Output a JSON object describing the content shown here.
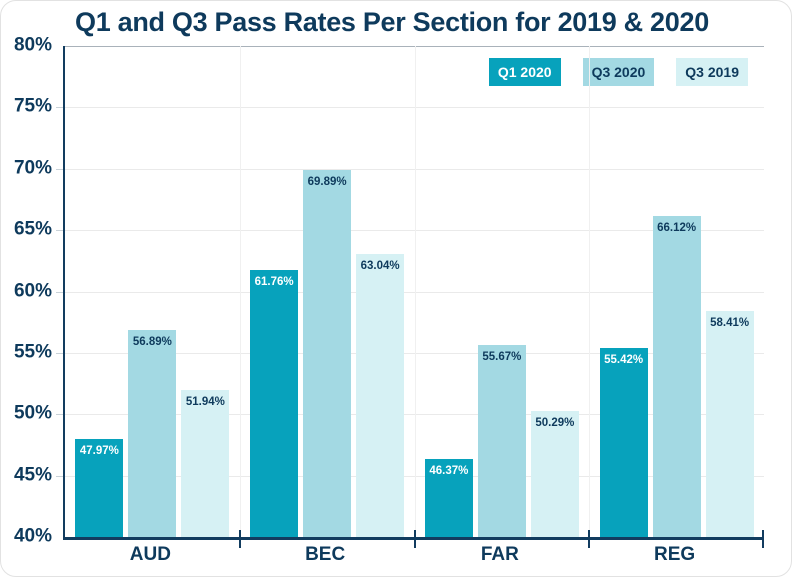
{
  "title": "Q1 and Q3 Pass Rates Per Section for 2019 & 2020",
  "colors": {
    "navy": "#0e3a5c",
    "axis": "#123c5f",
    "grid_light": "#eaeaea",
    "grid_top": "#a9b2ba",
    "grid_vertical": "#f0f0f0",
    "card_border": "#e2e2e2",
    "background": "#ffffff"
  },
  "chart_data": {
    "type": "bar",
    "title": "Q1 and Q3 Pass Rates Per Section for 2019 & 2020",
    "categories": [
      "AUD",
      "BEC",
      "FAR",
      "REG"
    ],
    "series": [
      {
        "name": "Q1 2020",
        "color": "#07a2bc",
        "label_color": "#ffffff",
        "values": [
          47.97,
          61.76,
          46.37,
          55.42
        ]
      },
      {
        "name": "Q3 2020",
        "color": "#a3d9e3",
        "label_color": "#0e3a5c",
        "values": [
          56.89,
          69.89,
          55.67,
          66.12
        ]
      },
      {
        "name": "Q3 2019",
        "color": "#d6f1f4",
        "label_color": "#0e3a5c",
        "values": [
          51.94,
          63.04,
          50.29,
          58.41
        ]
      }
    ],
    "xlabel": "",
    "ylabel": "",
    "ylim": [
      40,
      80
    ],
    "ytick_step": 5,
    "ytick_labels": [
      "80%",
      "75%",
      "70%",
      "65%",
      "60%",
      "55%",
      "50%",
      "45%",
      "40%"
    ],
    "value_label_suffix": "%",
    "value_label_decimals": 2,
    "grid": true,
    "legend_position": "top-right"
  }
}
